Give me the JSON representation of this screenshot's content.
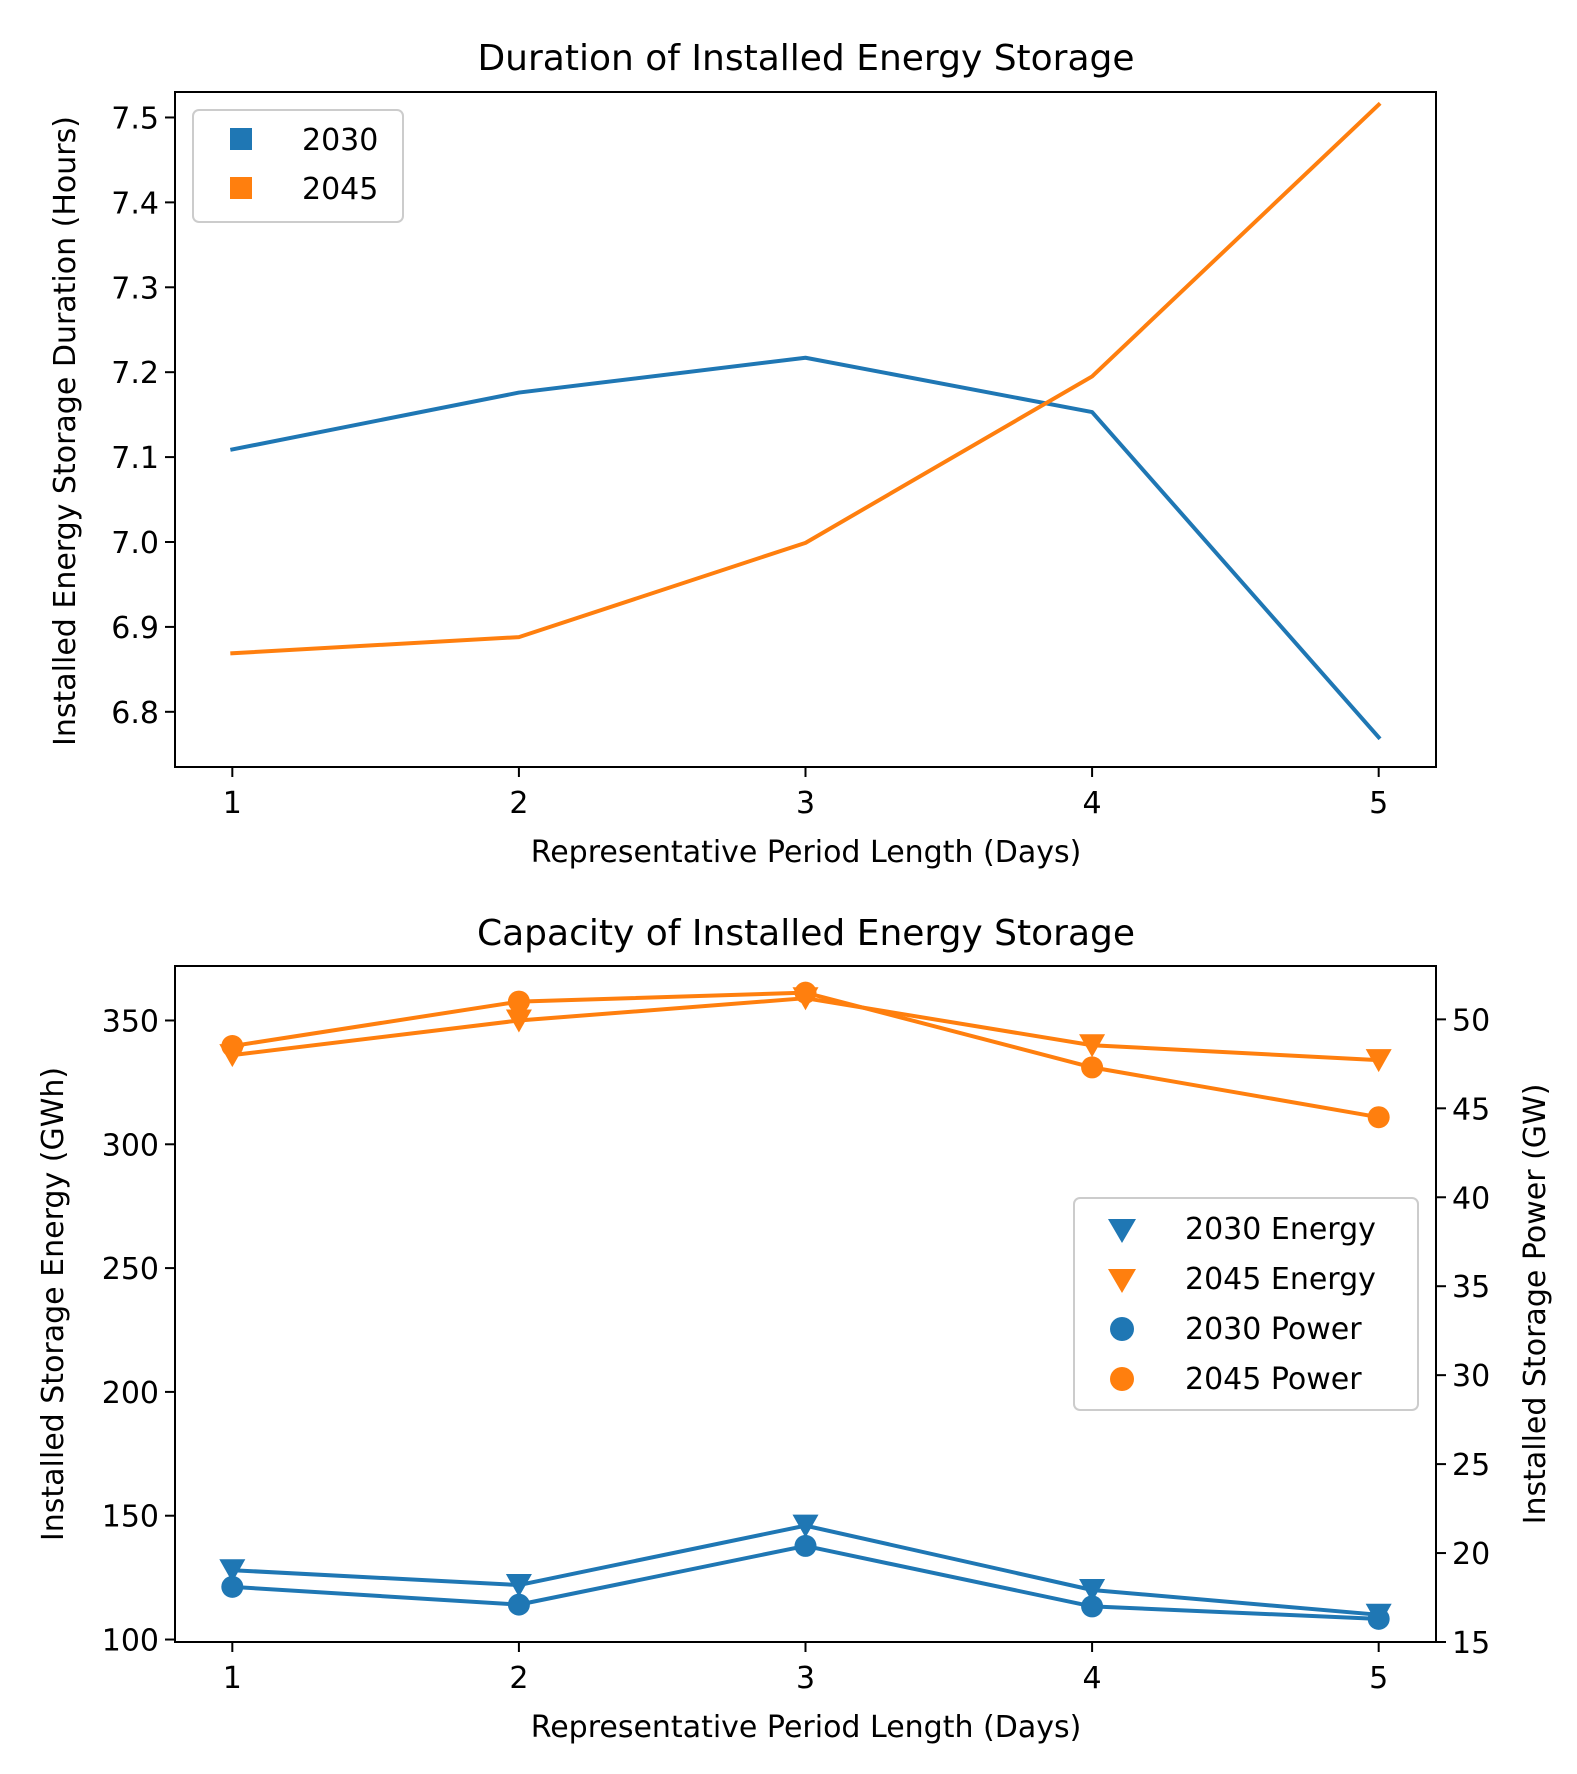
{
  "colors": {
    "blue": "#1f77b4",
    "orange": "#ff7f0e"
  },
  "chart_data": [
    {
      "type": "line",
      "title": "Duration of Installed Energy Storage",
      "xlabel": "Representative Period Length (Days)",
      "ylabel": "Installed Energy Storage Duration (Hours)",
      "x": [
        1,
        2,
        3,
        4,
        5
      ],
      "xlim": [
        0.8,
        5.2
      ],
      "ylim": [
        6.735,
        7.53
      ],
      "xticks": [
        "1",
        "2",
        "3",
        "4",
        "5"
      ],
      "yticks": [
        "6.8",
        "6.9",
        "7.0",
        "7.1",
        "7.2",
        "7.3",
        "7.4",
        "7.5"
      ],
      "legend_position": "upper-left",
      "series": [
        {
          "name": "2030",
          "color": "#1f77b4",
          "values": [
            7.109,
            7.176,
            7.217,
            7.153,
            6.77
          ]
        },
        {
          "name": "2045",
          "color": "#ff7f0e",
          "values": [
            6.869,
            6.888,
            6.999,
            7.195,
            7.515
          ]
        }
      ]
    },
    {
      "type": "line",
      "title": "Capacity of Installed Energy Storage",
      "xlabel": "Representative Period Length (Days)",
      "ylabel": "Installed Storage Energy (GWh)",
      "ylabel_right": "Installed Storage Power (GW)",
      "x": [
        1,
        2,
        3,
        4,
        5
      ],
      "xlim": [
        0.8,
        5.2
      ],
      "ylim": [
        99,
        372
      ],
      "ylim_right": [
        15,
        53
      ],
      "xticks": [
        "1",
        "2",
        "3",
        "4",
        "5"
      ],
      "yticks": [
        "100",
        "150",
        "200",
        "250",
        "300",
        "350"
      ],
      "yticks_right": [
        "15",
        "20",
        "25",
        "30",
        "35",
        "40",
        "45",
        "50"
      ],
      "legend_position": "center-right",
      "series": [
        {
          "name": "2030 Energy",
          "axis": "left",
          "marker": "triangle-down",
          "color": "#1f77b4",
          "values": [
            128,
            122,
            146,
            120,
            110
          ]
        },
        {
          "name": "2045 Energy",
          "axis": "left",
          "marker": "triangle-down",
          "color": "#ff7f0e",
          "values": [
            336,
            350,
            359,
            340,
            334
          ]
        },
        {
          "name": "2030 Power",
          "axis": "right",
          "marker": "circle",
          "color": "#1f77b4",
          "values": [
            18.1,
            17.1,
            20.4,
            17.0,
            16.3
          ]
        },
        {
          "name": "2045 Power",
          "axis": "right",
          "marker": "circle",
          "color": "#ff7f0e",
          "values": [
            48.5,
            51.0,
            51.5,
            47.3,
            44.5
          ]
        }
      ]
    }
  ]
}
